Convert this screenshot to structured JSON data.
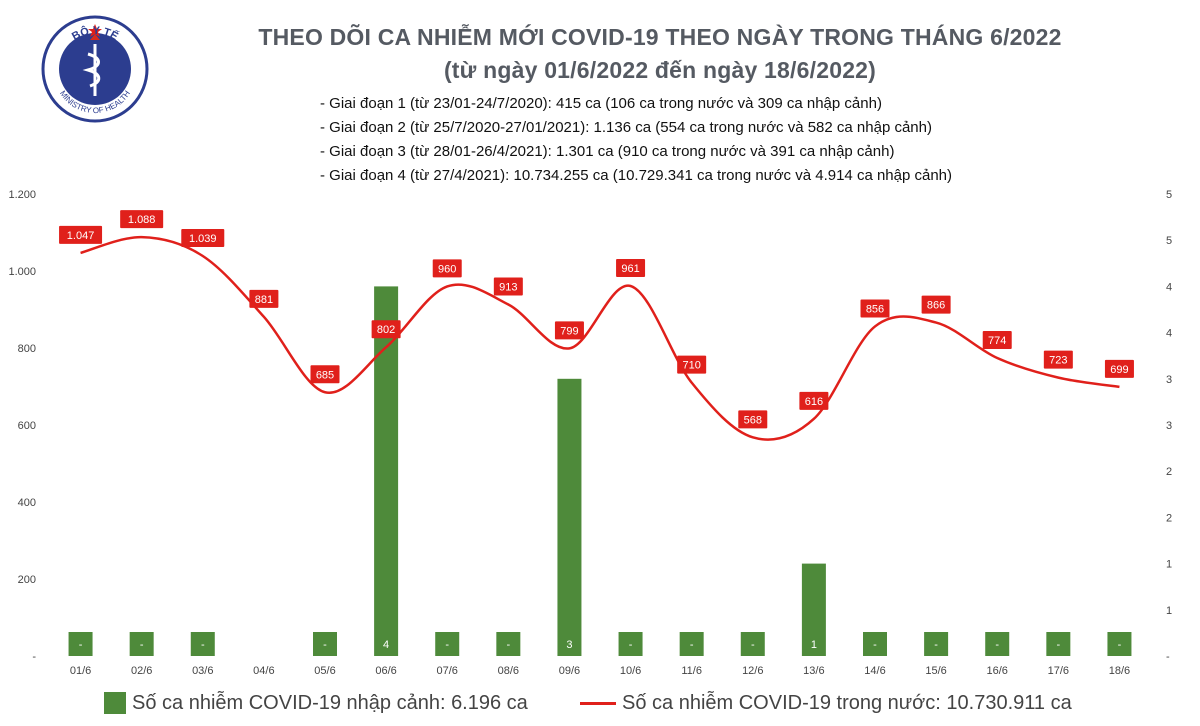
{
  "header": {
    "title_line1": "THEO DÕI CA NHIỄM MỚI COVID-19 THEO NGÀY TRONG THÁNG 6/2022",
    "title_line2": "(từ ngày 01/6/2022 đến ngày 18/6/2022)",
    "notes": [
      "- Giai đoạn 1 (từ 23/01-24/7/2020): 415 ca (106 ca trong nước và 309 ca nhập cảnh)",
      "- Giai đoạn 2 (từ 25/7/2020-27/01/2021): 1.136 ca (554 ca trong nước và 582 ca nhập cảnh)",
      "- Giai đoạn 3 (từ 28/01-26/4/2021): 1.301 ca (910 ca trong nước và 391 ca nhập cảnh)",
      "- Giai đoạn 4 (từ 27/4/2021): 10.734.255 ca (10.729.341 ca trong nước và 4.914 ca nhập cảnh)"
    ]
  },
  "logo": {
    "top_text": "BỘ Y TẾ",
    "bottom_text": "MINISTRY OF HEALTH"
  },
  "colors": {
    "bar": "#4e8a3a",
    "line": "#e0201b",
    "title": "#555a62",
    "logo": "#2c3d8f"
  },
  "chart_data": {
    "type": "bar+line",
    "categories": [
      "01/6",
      "02/6",
      "03/6",
      "04/6",
      "05/6",
      "06/6",
      "07/6",
      "08/6",
      "09/6",
      "10/6",
      "11/6",
      "12/6",
      "13/6",
      "14/6",
      "15/6",
      "16/6",
      "17/6",
      "18/6"
    ],
    "bar_series": {
      "name": "Số ca nhiễm COVID-19 nhập cảnh: 6.196 ca",
      "axis": "right",
      "values": [
        0,
        0,
        0,
        null,
        0,
        4,
        0,
        0,
        3,
        0,
        0,
        0,
        1,
        0,
        0,
        0,
        0,
        0
      ],
      "labels": [
        "-",
        "-",
        "-",
        "",
        "-",
        "4",
        "-",
        "-",
        "3",
        "-",
        "-",
        "-",
        "1",
        "-",
        "-",
        "-",
        "-",
        "-"
      ]
    },
    "line_series": {
      "name": "Số ca nhiễm COVID-19 trong nước: 10.730.911 ca",
      "axis": "left",
      "values": [
        1047,
        1088,
        1039,
        881,
        685,
        802,
        960,
        913,
        799,
        961,
        710,
        568,
        616,
        856,
        866,
        774,
        723,
        699
      ],
      "labels": [
        "1.047",
        "1.088",
        "1.039",
        "881",
        "685",
        "802",
        "960",
        "913",
        "799",
        "961",
        "710",
        "568",
        "616",
        "856",
        "866",
        "774",
        "723",
        "699"
      ]
    },
    "left_axis": {
      "ylim": [
        0,
        1200
      ],
      "tick_labels": [
        "-",
        "200",
        "400",
        "600",
        "800",
        "1.000",
        "1.200"
      ]
    },
    "right_axis": {
      "ylim": [
        0,
        5
      ],
      "tick_labels": [
        "-",
        "1",
        "1",
        "2",
        "2",
        "3",
        "3",
        "4",
        "4",
        "5",
        "5"
      ]
    },
    "grid": false,
    "legend": "bottom"
  }
}
